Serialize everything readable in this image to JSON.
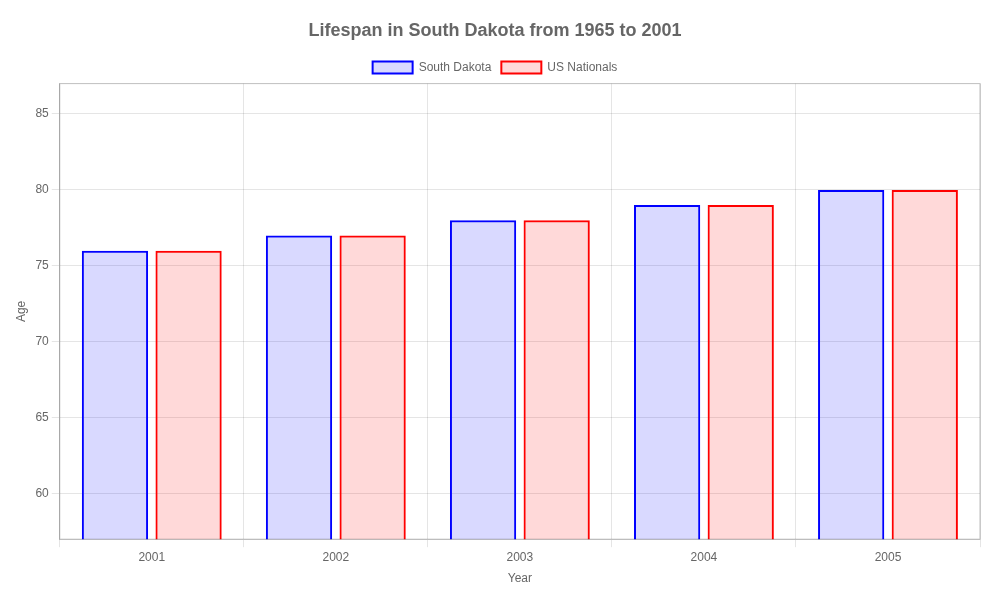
{
  "chart_data": {
    "type": "bar",
    "title": "Lifespan in South Dakota from 1965 to 2001",
    "xlabel": "Year",
    "ylabel": "Age",
    "categories": [
      "2001",
      "2002",
      "2003",
      "2004",
      "2005"
    ],
    "series": [
      {
        "name": "South Dakota",
        "color": "#0000ff",
        "values": [
          76,
          77,
          78,
          79,
          80
        ]
      },
      {
        "name": "US Nationals",
        "color": "#ff0000",
        "values": [
          76,
          77,
          78,
          79,
          80
        ]
      }
    ],
    "ylim": [
      57,
      87
    ],
    "yticks": [
      60,
      65,
      70,
      75,
      80,
      85
    ],
    "grid": true,
    "legend": "top"
  }
}
